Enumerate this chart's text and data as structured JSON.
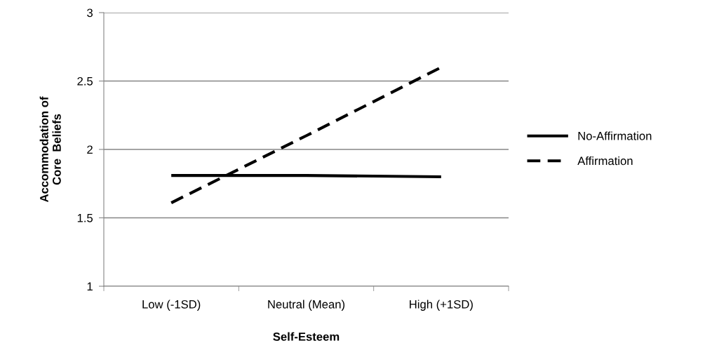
{
  "chart_data": {
    "type": "line",
    "xlabel": "Self-Esteem",
    "ylabel": "Accommodation of\nCore  Beliefs",
    "categories": [
      "Low (-1SD)",
      "Neutral (Mean)",
      "High (+1SD)"
    ],
    "series": [
      {
        "name": "No-Affirmation",
        "color": "#000000",
        "values": [
          1.81,
          1.81,
          1.8
        ],
        "line_style": "solid"
      },
      {
        "name": "Affirmation",
        "color": "#000000",
        "values": [
          1.61,
          2.1,
          2.6
        ],
        "line_style": "dashed"
      }
    ],
    "ylim": [
      1,
      3
    ],
    "yticks": [
      1,
      1.5,
      2,
      2.5,
      3
    ],
    "grid": "y",
    "legend": "right",
    "marker": "none"
  }
}
